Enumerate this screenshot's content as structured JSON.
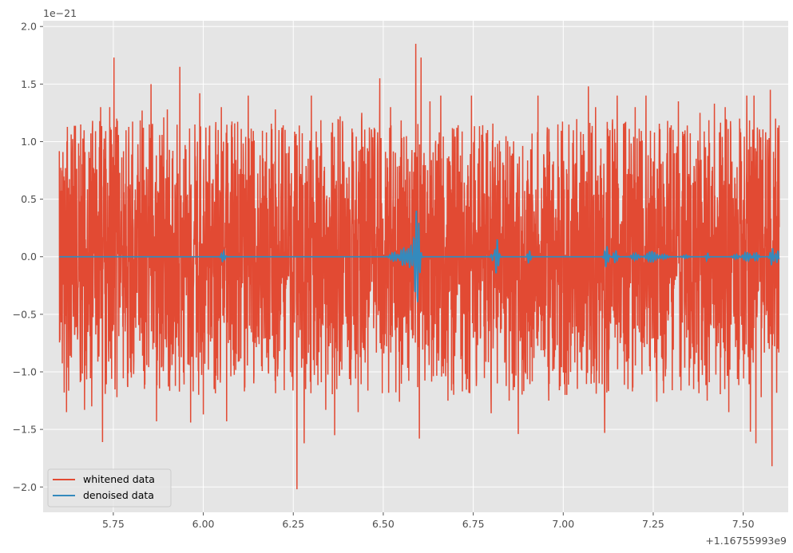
{
  "chart_data": {
    "type": "line",
    "title": "",
    "xlabel": "",
    "ylabel": "",
    "x_offset_label": "+1.16755993e9",
    "y_scale_label": "1e−21",
    "xlim": [
      5.555,
      7.625
    ],
    "ylim": [
      -2.22,
      2.05
    ],
    "x_ticks": [
      5.75,
      6.0,
      6.25,
      6.5,
      6.75,
      7.0,
      7.25,
      7.5
    ],
    "x_tick_labels": [
      "5.75",
      "6.00",
      "6.25",
      "6.50",
      "6.75",
      "7.00",
      "7.25",
      "7.50"
    ],
    "y_ticks": [
      -2.0,
      -1.5,
      -1.0,
      -0.5,
      0.0,
      0.5,
      1.0,
      1.5,
      2.0
    ],
    "y_tick_labels": [
      "−2.0",
      "−1.5",
      "−1.0",
      "−0.5",
      "0.0",
      "0.5",
      "1.0",
      "1.5",
      "2.0"
    ],
    "grid": true,
    "legend_placement": "lower-left",
    "series": [
      {
        "name": "whitened data",
        "color": "#e24a33",
        "x_range": [
          5.6,
          7.6
        ],
        "typical_amplitude": 0.65,
        "peaks": [
          {
            "x": 5.61,
            "y": 0.91
          },
          {
            "x": 5.62,
            "y": -1.35
          },
          {
            "x": 5.67,
            "y": -1.33
          },
          {
            "x": 5.69,
            "y": -1.3
          },
          {
            "x": 5.715,
            "y": 1.3
          },
          {
            "x": 5.72,
            "y": -1.61
          },
          {
            "x": 5.74,
            "y": 1.3
          },
          {
            "x": 5.752,
            "y": 1.73
          },
          {
            "x": 5.76,
            "y": -1.22
          },
          {
            "x": 5.8,
            "y": -1.05
          },
          {
            "x": 5.83,
            "y": 1.27
          },
          {
            "x": 5.855,
            "y": 1.5
          },
          {
            "x": 5.87,
            "y": -1.43
          },
          {
            "x": 5.89,
            "y": 1.21
          },
          {
            "x": 5.9,
            "y": 1.28
          },
          {
            "x": 5.935,
            "y": 1.65
          },
          {
            "x": 5.965,
            "y": -1.44
          },
          {
            "x": 5.99,
            "y": 1.42
          },
          {
            "x": 6.0,
            "y": -1.37
          },
          {
            "x": 6.04,
            "y": -1.07
          },
          {
            "x": 6.05,
            "y": 1.3
          },
          {
            "x": 6.065,
            "y": -1.43
          },
          {
            "x": 6.125,
            "y": 1.4
          },
          {
            "x": 6.14,
            "y": -1.1
          },
          {
            "x": 6.2,
            "y": 1.28
          },
          {
            "x": 6.21,
            "y": 1.1
          },
          {
            "x": 6.26,
            "y": -2.02
          },
          {
            "x": 6.28,
            "y": -1.62
          },
          {
            "x": 6.3,
            "y": 1.4
          },
          {
            "x": 6.34,
            "y": -1.33
          },
          {
            "x": 6.365,
            "y": -1.55
          },
          {
            "x": 6.38,
            "y": 1.22
          },
          {
            "x": 6.43,
            "y": -1.35
          },
          {
            "x": 6.44,
            "y": 1.25
          },
          {
            "x": 6.475,
            "y": 1.12
          },
          {
            "x": 6.49,
            "y": 1.55
          },
          {
            "x": 6.52,
            "y": 1.3
          },
          {
            "x": 6.545,
            "y": -1.26
          },
          {
            "x": 6.59,
            "y": 1.85
          },
          {
            "x": 6.6,
            "y": -1.58
          },
          {
            "x": 6.605,
            "y": 1.73
          },
          {
            "x": 6.63,
            "y": 1.35
          },
          {
            "x": 6.66,
            "y": 1.4
          },
          {
            "x": 6.68,
            "y": -1.25
          },
          {
            "x": 6.72,
            "y": -1.17
          },
          {
            "x": 6.745,
            "y": 1.4
          },
          {
            "x": 6.79,
            "y": 1.1
          },
          {
            "x": 6.8,
            "y": -1.36
          },
          {
            "x": 6.85,
            "y": -1.25
          },
          {
            "x": 6.875,
            "y": -1.54
          },
          {
            "x": 6.93,
            "y": 1.4
          },
          {
            "x": 6.96,
            "y": -1.25
          },
          {
            "x": 6.985,
            "y": 1.15
          },
          {
            "x": 7.01,
            "y": -1.2
          },
          {
            "x": 7.07,
            "y": 1.48
          },
          {
            "x": 7.09,
            "y": 1.3
          },
          {
            "x": 7.1,
            "y": -1.1
          },
          {
            "x": 7.115,
            "y": -1.53
          },
          {
            "x": 7.13,
            "y": 1.1
          },
          {
            "x": 7.15,
            "y": 1.4
          },
          {
            "x": 7.18,
            "y": -1.15
          },
          {
            "x": 7.2,
            "y": 1.3
          },
          {
            "x": 7.23,
            "y": 1.4
          },
          {
            "x": 7.26,
            "y": -1.26
          },
          {
            "x": 7.29,
            "y": 1.18
          },
          {
            "x": 7.32,
            "y": 1.35
          },
          {
            "x": 7.35,
            "y": -1.12
          },
          {
            "x": 7.38,
            "y": 1.25
          },
          {
            "x": 7.4,
            "y": -1.25
          },
          {
            "x": 7.42,
            "y": 1.33
          },
          {
            "x": 7.45,
            "y": 1.3
          },
          {
            "x": 7.46,
            "y": -1.35
          },
          {
            "x": 7.49,
            "y": 1.2
          },
          {
            "x": 7.51,
            "y": 1.4
          },
          {
            "x": 7.52,
            "y": -1.52
          },
          {
            "x": 7.53,
            "y": 1.4
          },
          {
            "x": 7.535,
            "y": -1.62
          },
          {
            "x": 7.55,
            "y": -1.22
          },
          {
            "x": 7.575,
            "y": 1.45
          },
          {
            "x": 7.58,
            "y": -1.82
          },
          {
            "x": 7.59,
            "y": 1.2
          },
          {
            "x": 7.595,
            "y": -0.8
          }
        ]
      },
      {
        "name": "denoised  data",
        "color": "#348abd",
        "x_range": [
          5.6,
          7.6
        ],
        "baseline": 0.0,
        "bursts": [
          {
            "x": 6.055,
            "amplitude": 0.05,
            "width": 0.006
          },
          {
            "x": 6.53,
            "amplitude": 0.04,
            "width": 0.012
          },
          {
            "x": 6.555,
            "amplitude": 0.08,
            "width": 0.01
          },
          {
            "x": 6.575,
            "amplitude": 0.1,
            "width": 0.008
          },
          {
            "x": 6.59,
            "amplitude": 0.31,
            "width": 0.006
          },
          {
            "x": 6.597,
            "amplitude": 0.28,
            "width": 0.006
          },
          {
            "x": 6.805,
            "amplitude": 0.04,
            "width": 0.006
          },
          {
            "x": 6.815,
            "amplitude": 0.17,
            "width": 0.006
          },
          {
            "x": 6.905,
            "amplitude": 0.06,
            "width": 0.005
          },
          {
            "x": 7.12,
            "amplitude": 0.1,
            "width": 0.006
          },
          {
            "x": 7.145,
            "amplitude": 0.06,
            "width": 0.006
          },
          {
            "x": 7.2,
            "amplitude": 0.03,
            "width": 0.012
          },
          {
            "x": 7.245,
            "amplitude": 0.05,
            "width": 0.015
          },
          {
            "x": 7.28,
            "amplitude": 0.02,
            "width": 0.012
          },
          {
            "x": 7.34,
            "amplitude": 0.015,
            "width": 0.01
          },
          {
            "x": 7.4,
            "amplitude": 0.04,
            "width": 0.004
          },
          {
            "x": 7.48,
            "amplitude": 0.02,
            "width": 0.01
          },
          {
            "x": 7.51,
            "amplitude": 0.04,
            "width": 0.012
          },
          {
            "x": 7.535,
            "amplitude": 0.04,
            "width": 0.008
          },
          {
            "x": 7.58,
            "amplitude": 0.08,
            "width": 0.006
          },
          {
            "x": 7.595,
            "amplitude": 0.06,
            "width": 0.005
          }
        ]
      }
    ]
  }
}
